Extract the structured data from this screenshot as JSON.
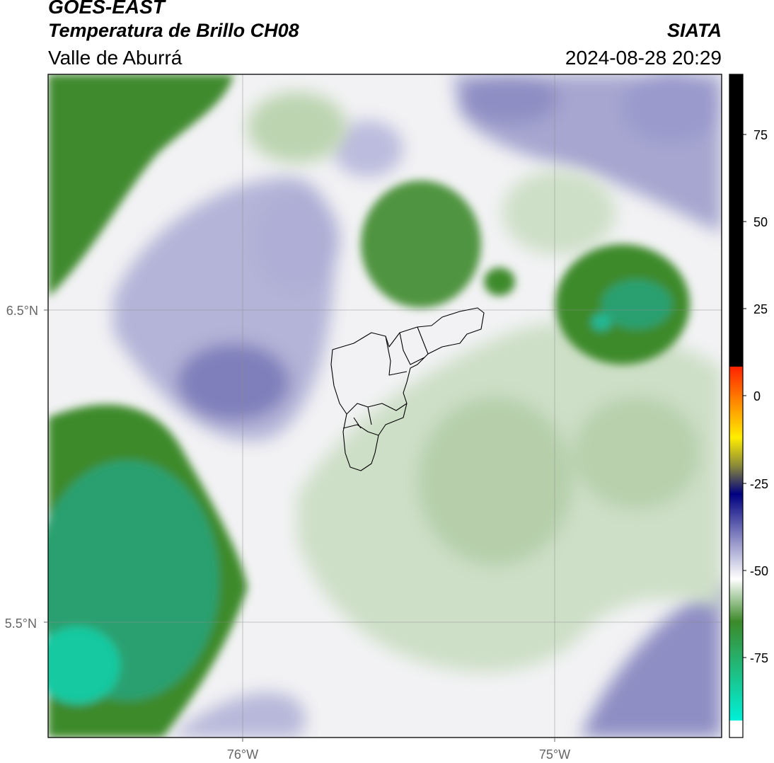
{
  "header": {
    "satellite": "GOES-EAST",
    "product": "Temperatura de Brillo CH08",
    "region": "Valle de Aburrá",
    "agency": "SIATA",
    "datetime": "2024-08-28 20:29"
  },
  "map": {
    "lat_ticks": [
      {
        "label": "6.5°N"
      },
      {
        "label": "5.5°N"
      }
    ],
    "lon_ticks": [
      {
        "label": "76°W"
      },
      {
        "label": "75°W"
      }
    ]
  },
  "colorbar": {
    "ticks": [
      "75",
      "50",
      "25",
      "0",
      "-25",
      "-50",
      "-75"
    ],
    "colors": {
      "black": "#000000",
      "red": "#ff2200",
      "orange": "#ff8800",
      "yellow": "#ffee00",
      "olive": "#8a8a3a",
      "navy": "#000080",
      "lavender": "#9a9acc",
      "white": "#ffffff",
      "green": "#3c8a2a",
      "cyan": "#00f0d8"
    }
  },
  "legend_colors": {
    "cold_cloud_green": "#3c8a2a",
    "very_cold_cyan": "#19c9a0",
    "mid_lavender": "#9a9acc",
    "dark_lavender": "#6a6aac",
    "light_green": "#c8dcc0",
    "boundary": "#000000"
  }
}
